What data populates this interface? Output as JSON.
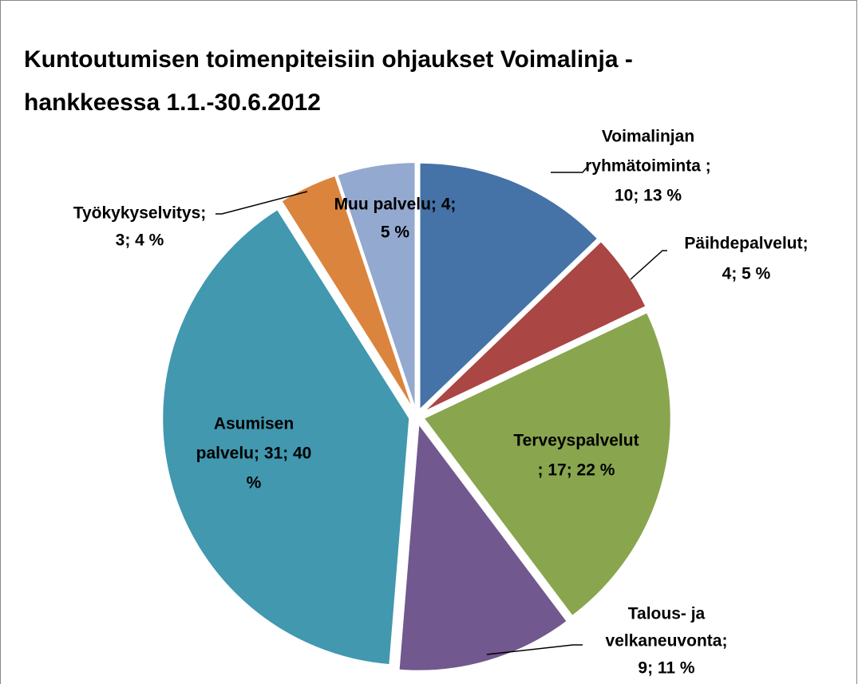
{
  "chart_data": {
    "type": "pie",
    "title": [
      "Kuntoutumisen toimenpiteisiin ohjaukset Voimalinja -",
      "hankkeessa 1.1.-30.6.2012"
    ],
    "values": [
      10,
      4,
      17,
      9,
      31,
      3,
      4
    ],
    "value_labels": [
      [
        "Voimalinjan",
        "ryhmätoiminta ;",
        "10; 13 %"
      ],
      [
        "Päihdepalvelut;",
        "4; 5 %"
      ],
      [
        "Terveyspalvelut",
        "; 17; 22 %"
      ],
      [
        "Talous- ja",
        "velkaneuvonta;",
        "9; 11 %"
      ],
      [
        "Asumisen",
        "palvelu; 31; 40",
        "%"
      ],
      [
        "Työkykyselvitys;",
        "3; 4 %"
      ],
      [
        "Muu palvelu; 4;",
        "5 %"
      ]
    ],
    "colors": [
      "#4572a7",
      "#aa4643",
      "#89a54e",
      "#71588f",
      "#4198af",
      "#db843d",
      "#93a9cf"
    ]
  }
}
